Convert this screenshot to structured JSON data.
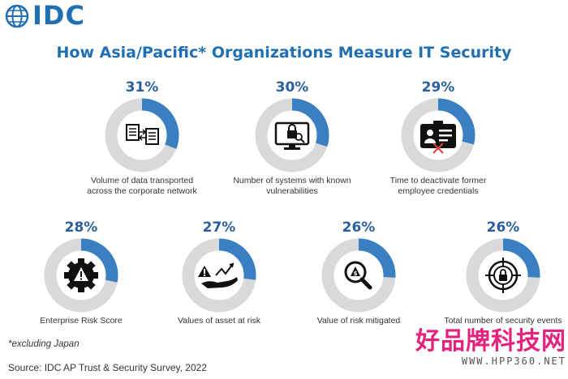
{
  "brand": {
    "logo_text": "IDC",
    "color_primary": "#1f6fb2",
    "color_dark_blue": "#2a5f9e"
  },
  "chart_data": {
    "type": "pie",
    "title": "How Asia/Pacific* Organizations Measure IT Security",
    "unit": "%",
    "items": [
      {
        "label_lines": [
          "Volume of data transported",
          "across the corporate network"
        ],
        "value": 31,
        "display": "31%",
        "icon": "data-transfer-icon"
      },
      {
        "label_lines": [
          "Number of systems with known",
          "vulnerabilities"
        ],
        "value": 30,
        "display": "30%",
        "icon": "vulnerable-monitor-icon"
      },
      {
        "label_lines": [
          "Time to deactivate former",
          "employee credentials"
        ],
        "value": 29,
        "display": "29%",
        "icon": "id-badge-icon"
      },
      {
        "label_lines": [
          "Enterprise Risk Score"
        ],
        "value": 28,
        "display": "28%",
        "icon": "risk-gear-icon"
      },
      {
        "label_lines": [
          "Values of asset at risk"
        ],
        "value": 27,
        "display": "27%",
        "icon": "asset-risk-icon"
      },
      {
        "label_lines": [
          "Value of risk mitigated"
        ],
        "value": 26,
        "display": "26%",
        "icon": "magnifier-dollar-icon"
      },
      {
        "label_lines": [
          "Total number of security events"
        ],
        "value": 26,
        "display": "26%",
        "icon": "target-lock-icon"
      }
    ],
    "colors": {
      "filled": "#3a7fc1",
      "track": "#d9d9d9"
    }
  },
  "footnote": "*excluding Japan",
  "source": "Source: IDC AP Trust & Security Survey, 2022",
  "watermark": {
    "cn": "好品牌科技网",
    "url": "WWW.HPP360.NET"
  }
}
